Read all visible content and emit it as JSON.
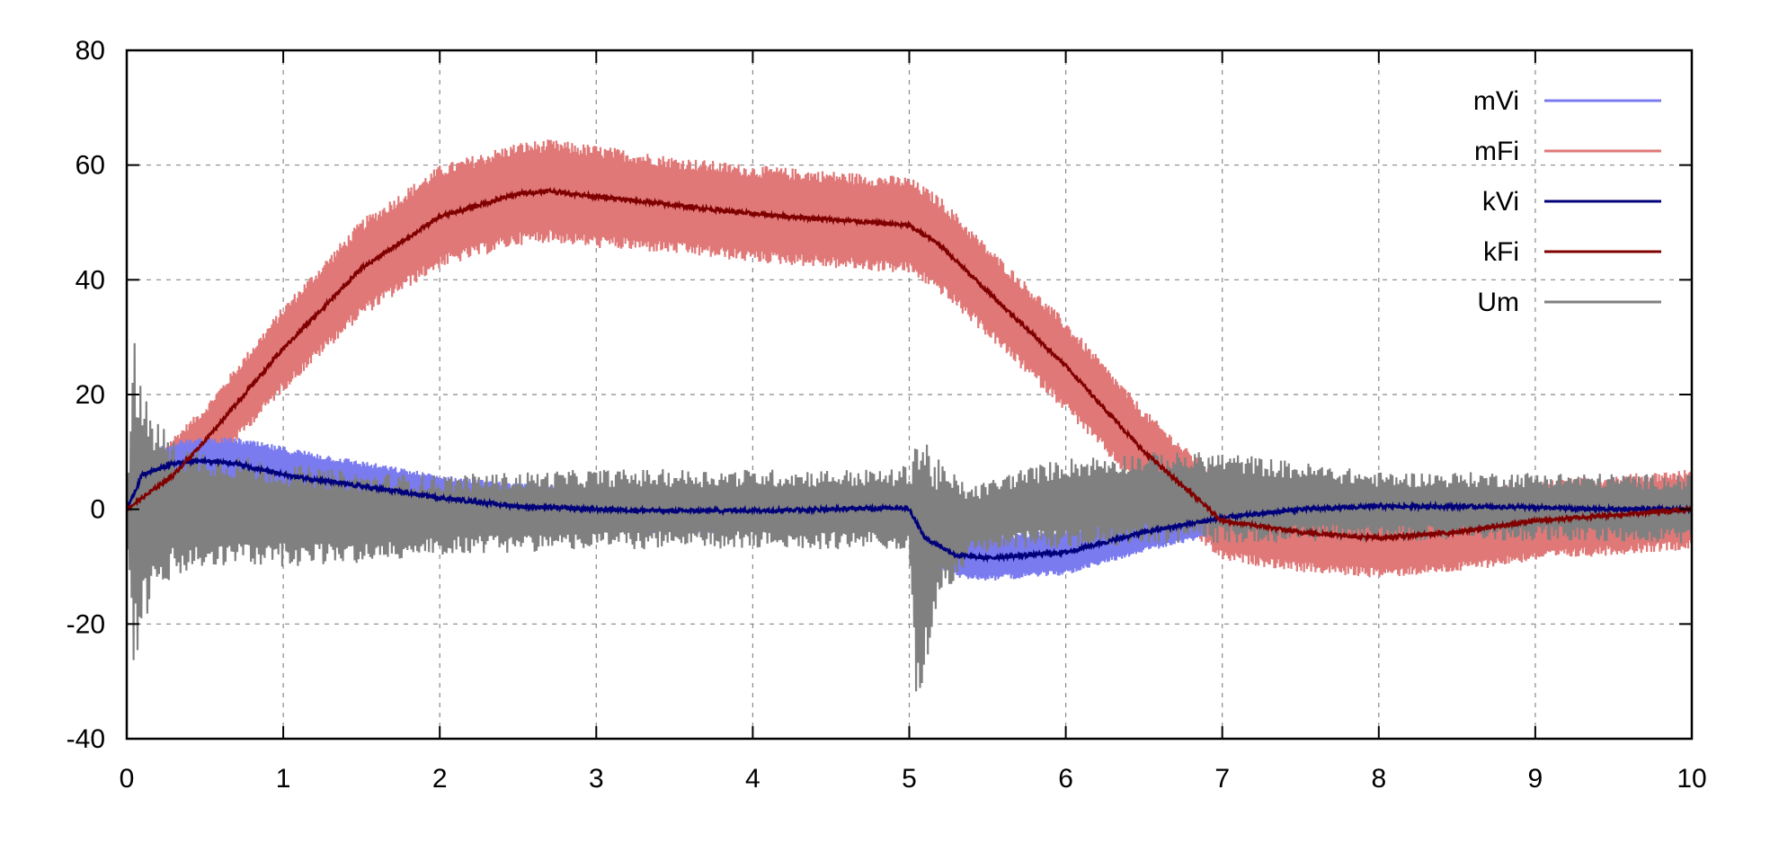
{
  "chart_data": {
    "type": "line",
    "title": "",
    "xlabel": "",
    "ylabel": "",
    "xlim": [
      0,
      10
    ],
    "ylim": [
      -40,
      80
    ],
    "xticks": [
      0,
      1,
      2,
      3,
      4,
      5,
      6,
      7,
      8,
      9,
      10
    ],
    "yticks": [
      -40,
      -20,
      0,
      20,
      40,
      60,
      80
    ],
    "x_tick_labels": [
      "0",
      "1",
      "2",
      "3",
      "4",
      "5",
      "6",
      "7",
      "8",
      "9",
      "10"
    ],
    "y_tick_labels": [
      "-40",
      "-20",
      "0",
      "20",
      "40",
      "60",
      "80"
    ],
    "grid": true,
    "legend_position": "top-right",
    "series": [
      {
        "name": "mVi",
        "color": "#7b7bf0",
        "style": "noisy-band",
        "x": [
          0,
          0.1,
          0.3,
          0.5,
          0.7,
          1.0,
          1.5,
          2.0,
          2.5,
          3.0,
          3.5,
          4.0,
          4.5,
          4.95,
          5.0,
          5.1,
          5.3,
          5.5,
          6.0,
          6.5,
          6.9
        ],
        "center": [
          0,
          6,
          8,
          8.5,
          8,
          6,
          4,
          2,
          0.5,
          0,
          -0.3,
          -0.2,
          0,
          0.3,
          0,
          -5,
          -8,
          -8.5,
          -7.5,
          -4,
          -2
        ],
        "amplitude": [
          4,
          4,
          4,
          4,
          4.5,
          5,
          4.5,
          4,
          4,
          4,
          4,
          4,
          4,
          4,
          4,
          4,
          4,
          4,
          4,
          3.5,
          3
        ]
      },
      {
        "name": "mFi",
        "color": "#e07878",
        "style": "noisy-band",
        "x": [
          0,
          0.5,
          1.0,
          1.5,
          2.0,
          2.5,
          2.7,
          3.0,
          3.5,
          4.0,
          4.5,
          5.0,
          5.2,
          5.5,
          6.0,
          6.5,
          7.0,
          7.5,
          8.0,
          8.5,
          9.0,
          9.5,
          10.0
        ],
        "center": [
          0,
          12,
          28,
          42,
          51,
          55,
          55.5,
          54.5,
          53,
          51.5,
          50.5,
          49.5,
          46,
          38,
          25,
          10,
          -2,
          -4,
          -5,
          -4,
          -2,
          -1,
          0
        ],
        "amplitude": [
          5,
          6,
          7.5,
          8.5,
          9,
          9,
          9,
          9,
          8.5,
          8.5,
          8.5,
          8.5,
          8.5,
          8,
          8,
          7.5,
          7,
          7,
          7,
          7,
          7,
          7,
          7
        ]
      },
      {
        "name": "kVi",
        "color": "#00007a",
        "style": "line",
        "x": [
          0,
          0.1,
          0.3,
          0.5,
          0.7,
          1.0,
          1.5,
          2.0,
          2.5,
          3.0,
          3.5,
          4.0,
          4.5,
          4.95,
          5.0,
          5.1,
          5.3,
          5.5,
          6.0,
          6.5,
          7.0,
          7.5,
          8.0,
          8.5,
          9.0,
          9.5,
          10.0
        ],
        "y": [
          0,
          6,
          8,
          8.5,
          8,
          6,
          4,
          2,
          0.5,
          0,
          -0.3,
          -0.2,
          0,
          0.3,
          0,
          -5,
          -8,
          -8.5,
          -7.5,
          -4,
          -1.5,
          0,
          0.5,
          0.5,
          0.3,
          0,
          0
        ]
      },
      {
        "name": "kFi",
        "color": "#800000",
        "style": "line",
        "x": [
          0,
          0.3,
          0.5,
          1.0,
          1.5,
          2.0,
          2.5,
          2.7,
          3.0,
          3.5,
          4.0,
          4.5,
          5.0,
          5.2,
          5.5,
          6.0,
          6.5,
          7.0,
          7.5,
          8.0,
          8.5,
          9.0,
          9.5,
          10.0
        ],
        "y": [
          0,
          6,
          12,
          28,
          42,
          51,
          55,
          55.5,
          54.5,
          53,
          51.5,
          50.5,
          49.5,
          46,
          38,
          25,
          10,
          -2,
          -4,
          -5,
          -4,
          -2,
          -1,
          0
        ]
      },
      {
        "name": "Um",
        "color": "#808080",
        "style": "oscillation",
        "x": [
          0,
          0.05,
          0.1,
          0.3,
          0.6,
          1.0,
          1.5,
          2.0,
          3.0,
          4.0,
          4.9,
          5.0,
          5.05,
          5.2,
          5.4,
          5.7,
          6.0,
          6.5,
          7.0,
          8.0,
          9.0,
          10.0
        ],
        "center": [
          0,
          0,
          0,
          0,
          0,
          -1,
          -1.5,
          -1,
          0,
          0,
          0,
          0,
          -10,
          -4,
          -2,
          0,
          1,
          2,
          2,
          0.5,
          0.5,
          0
        ],
        "amplitude": [
          5,
          30,
          20,
          12,
          10,
          9,
          8,
          7,
          7,
          7,
          7,
          8,
          26,
          12,
          6,
          7,
          8,
          8,
          8,
          6,
          6,
          6
        ]
      }
    ]
  }
}
